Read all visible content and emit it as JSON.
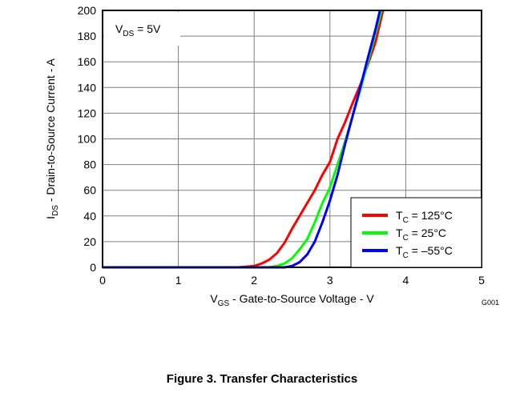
{
  "chart_data": {
    "type": "line",
    "title": "Figure 3. Transfer Characteristics",
    "x_label": [
      "V",
      "GS",
      " - Gate-to-Source Voltage - V"
    ],
    "y_label": [
      "I",
      "DS",
      " - Drain-to-Source Current - A"
    ],
    "annotation": [
      "V",
      "DS",
      " = 5V"
    ],
    "figure_id": "G001",
    "xlim": [
      0,
      5
    ],
    "xticks": [
      0,
      1,
      2,
      3,
      4,
      5
    ],
    "ylim": [
      0,
      200
    ],
    "yticks": [
      0,
      20,
      40,
      60,
      80,
      100,
      120,
      140,
      160,
      180,
      200
    ],
    "grid": true,
    "legend": "lower right",
    "series": [
      {
        "name": [
          "T",
          "C",
          " = 125°C"
        ],
        "color": "#ff0000",
        "x": [
          0,
          1.8,
          2.0,
          2.1,
          2.2,
          2.3,
          2.4,
          2.5,
          2.6,
          2.7,
          2.8,
          2.9,
          3.0,
          3.1,
          3.2,
          3.3,
          3.4,
          3.5,
          3.6,
          3.7
        ],
        "values": [
          0,
          0,
          1,
          3,
          6,
          11,
          19,
          30,
          40,
          50,
          60,
          72,
          82,
          100,
          113,
          128,
          142,
          158,
          175,
          200
        ]
      },
      {
        "name": [
          "T",
          "C",
          " = 25°C"
        ],
        "color": "#00ff00",
        "x": [
          0,
          2.2,
          2.3,
          2.4,
          2.5,
          2.6,
          2.7,
          2.8,
          2.9,
          3.0,
          3.1,
          3.2,
          3.3,
          3.4,
          3.5,
          3.6,
          3.68
        ],
        "values": [
          0,
          0,
          1,
          3,
          7,
          14,
          22,
          35,
          50,
          62,
          80,
          98,
          118,
          138,
          160,
          182,
          200
        ]
      },
      {
        "name": [
          "T",
          "C",
          " = –55°C"
        ],
        "color": "#0000ff",
        "x": [
          0,
          2.4,
          2.5,
          2.6,
          2.7,
          2.8,
          2.9,
          3.0,
          3.1,
          3.2,
          3.3,
          3.4,
          3.5,
          3.6,
          3.66
        ],
        "values": [
          0,
          0,
          1,
          4,
          10,
          20,
          35,
          52,
          72,
          96,
          118,
          140,
          163,
          185,
          200
        ]
      }
    ]
  }
}
